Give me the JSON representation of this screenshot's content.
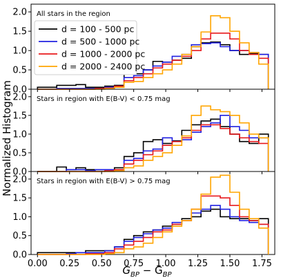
{
  "figure": {
    "ylabel": "Normalized Histogram",
    "xlabel_main": "G",
    "xlabel_sub1": "BP",
    "xlabel_mid": " − G",
    "xlabel_sub2": "BP"
  },
  "colors": {
    "black": "#000000",
    "blue": "#1f1fe0",
    "red": "#e8191c",
    "orange": "#ffa500"
  },
  "legend": [
    {
      "label": "d = 100 - 500 pc",
      "color": "#000000"
    },
    {
      "label": "d = 500 - 1000 pc",
      "color": "#1f1fe0"
    },
    {
      "label": "d = 1000 - 2000 pc",
      "color": "#e8191c"
    },
    {
      "label": "d = 2000 - 2400 pc",
      "color": "#ffa500"
    }
  ],
  "chart_data": [
    {
      "type": "step-histogram",
      "title": "All stars in the region",
      "xlim": [
        -0.05,
        1.85
      ],
      "ylim": [
        0,
        2.2
      ],
      "xticks": [
        "0.00",
        "0.25",
        "0.50",
        "0.75",
        "1.00",
        "1.25",
        "1.50",
        "1.75"
      ],
      "yticks": [
        "0.0",
        "0.5",
        "1.0",
        "1.5",
        "2.0"
      ],
      "bin_edges": [
        0.0,
        0.075,
        0.15,
        0.225,
        0.3,
        0.375,
        0.45,
        0.525,
        0.6,
        0.675,
        0.75,
        0.825,
        0.9,
        0.975,
        1.05,
        1.125,
        1.2,
        1.275,
        1.35,
        1.425,
        1.5,
        1.575,
        1.65,
        1.725,
        1.8
      ],
      "series": [
        {
          "name": "d = 100 - 500 pc",
          "color": "#000000",
          "values": [
            0.05,
            0.05,
            0.1,
            0.1,
            0.12,
            0.05,
            0.05,
            0.08,
            0.1,
            0.4,
            0.4,
            0.5,
            0.72,
            0.7,
            0.75,
            0.8,
            1.1,
            1.2,
            1.22,
            1.15,
            1.0,
            0.9,
            0.92,
            0.9
          ]
        },
        {
          "name": "d = 500 - 1000 pc",
          "color": "#1f1fe0",
          "values": [
            0.0,
            0.0,
            0.02,
            0.02,
            0.02,
            0.02,
            0.02,
            0.05,
            0.05,
            0.3,
            0.35,
            0.5,
            0.6,
            0.7,
            0.85,
            0.9,
            1.15,
            1.18,
            1.2,
            1.1,
            1.0,
            1.0,
            0.95,
            0.9
          ]
        },
        {
          "name": "d = 1000 - 2000 pc",
          "color": "#e8191c",
          "values": [
            0.0,
            0.0,
            0.0,
            0.0,
            0.0,
            0.0,
            0.02,
            0.03,
            0.08,
            0.22,
            0.3,
            0.4,
            0.55,
            0.65,
            0.75,
            0.85,
            1.0,
            1.3,
            1.45,
            1.45,
            1.3,
            1.0,
            0.9,
            0.8
          ]
        },
        {
          "name": "d = 2000 - 2400 pc",
          "color": "#ffa500",
          "values": [
            0.0,
            0.0,
            0.0,
            0.0,
            0.0,
            0.0,
            0.0,
            0.02,
            0.05,
            0.18,
            0.2,
            0.3,
            0.4,
            0.5,
            0.65,
            0.9,
            1.1,
            1.48,
            1.9,
            1.85,
            1.5,
            1.2,
            0.95,
            0.65
          ]
        }
      ]
    },
    {
      "type": "step-histogram",
      "title": "Stars in region with E(B-V) < 0.75 mag",
      "xlim": [
        -0.05,
        1.85
      ],
      "ylim": [
        0,
        2.2
      ],
      "xticks": [
        "0.00",
        "0.25",
        "0.50",
        "0.75",
        "1.00",
        "1.25",
        "1.50",
        "1.75"
      ],
      "yticks": [
        "0.0",
        "0.5",
        "1.0",
        "1.5",
        "2.0"
      ],
      "bin_edges": [
        0.0,
        0.075,
        0.15,
        0.225,
        0.3,
        0.375,
        0.45,
        0.525,
        0.6,
        0.675,
        0.75,
        0.825,
        0.9,
        0.975,
        1.05,
        1.125,
        1.2,
        1.275,
        1.35,
        1.425,
        1.5,
        1.575,
        1.65,
        1.725,
        1.8
      ],
      "series": [
        {
          "name": "d = 100 - 500 pc",
          "color": "#000000",
          "values": [
            0.0,
            0.0,
            0.12,
            0.05,
            0.1,
            0.05,
            0.05,
            0.05,
            0.1,
            0.4,
            0.5,
            0.8,
            0.85,
            0.75,
            0.82,
            1.1,
            1.25,
            1.35,
            1.4,
            1.2,
            1.0,
            0.8,
            0.75,
            1.0
          ]
        },
        {
          "name": "d = 500 - 1000 pc",
          "color": "#1f1fe0",
          "values": [
            0.0,
            0.0,
            0.0,
            0.05,
            0.05,
            0.02,
            0.05,
            0.05,
            0.05,
            0.3,
            0.35,
            0.55,
            0.6,
            0.9,
            0.8,
            0.85,
            1.05,
            1.2,
            1.3,
            1.5,
            1.2,
            1.1,
            0.9,
            0.9
          ]
        },
        {
          "name": "d = 1000 - 2000 pc",
          "color": "#e8191c",
          "values": [
            0.0,
            0.0,
            0.0,
            0.0,
            0.0,
            0.0,
            0.0,
            0.02,
            0.05,
            0.2,
            0.3,
            0.45,
            0.55,
            0.7,
            0.8,
            0.9,
            1.1,
            1.25,
            1.25,
            1.15,
            1.0,
            0.9,
            0.8,
            0.75
          ]
        },
        {
          "name": "d = 2000 - 2400 pc",
          "color": "#ffa500",
          "values": [
            0.0,
            0.0,
            0.0,
            0.0,
            0.0,
            0.0,
            0.0,
            0.0,
            0.02,
            0.1,
            0.15,
            0.3,
            0.4,
            0.5,
            0.7,
            0.95,
            1.5,
            1.75,
            1.65,
            1.6,
            1.5,
            1.3,
            1.0,
            0.9
          ]
        }
      ]
    },
    {
      "type": "step-histogram",
      "title": "Stars in region with E(B-V) > 0.75 mag",
      "xlim": [
        -0.05,
        1.85
      ],
      "ylim": [
        0,
        2.2
      ],
      "xticks": [
        "0.00",
        "0.25",
        "0.50",
        "0.75",
        "1.00",
        "1.25",
        "1.50",
        "1.75"
      ],
      "yticks": [
        "0.0",
        "0.5",
        "1.0",
        "1.5",
        "2.0"
      ],
      "bin_edges": [
        0.0,
        0.075,
        0.15,
        0.225,
        0.3,
        0.375,
        0.45,
        0.525,
        0.6,
        0.675,
        0.75,
        0.825,
        0.9,
        0.975,
        1.05,
        1.125,
        1.2,
        1.275,
        1.35,
        1.425,
        1.5,
        1.575,
        1.65,
        1.725,
        1.8
      ],
      "series": [
        {
          "name": "d = 100 - 500 pc",
          "color": "#000000",
          "values": [
            0.05,
            0.05,
            0.05,
            0.05,
            0.05,
            0.1,
            0.1,
            0.1,
            0.2,
            0.4,
            0.5,
            0.6,
            0.65,
            0.75,
            0.8,
            0.95,
            1.0,
            1.15,
            1.2,
            1.0,
            0.95,
            0.95,
            0.9,
            0.95
          ]
        },
        {
          "name": "d = 500 - 1000 pc",
          "color": "#1f1fe0",
          "values": [
            0.0,
            0.0,
            0.0,
            0.02,
            0.05,
            0.05,
            0.05,
            0.1,
            0.2,
            0.35,
            0.45,
            0.55,
            0.65,
            0.7,
            0.85,
            0.9,
            1.1,
            1.2,
            1.3,
            1.2,
            1.0,
            0.9,
            0.85,
            0.8
          ]
        },
        {
          "name": "d = 1000 - 2000 pc",
          "color": "#e8191c",
          "values": [
            0.0,
            0.0,
            0.0,
            0.0,
            0.0,
            0.02,
            0.02,
            0.05,
            0.15,
            0.25,
            0.35,
            0.45,
            0.6,
            0.65,
            0.8,
            0.9,
            1.2,
            1.55,
            1.55,
            1.5,
            1.3,
            1.0,
            0.9,
            0.8
          ]
        },
        {
          "name": "d = 2000 - 2400 pc",
          "color": "#ffa500",
          "values": [
            0.0,
            0.0,
            0.0,
            0.0,
            0.0,
            0.0,
            0.0,
            0.02,
            0.05,
            0.15,
            0.2,
            0.3,
            0.45,
            0.6,
            0.75,
            0.9,
            1.2,
            1.6,
            2.05,
            2.1,
            1.65,
            1.2,
            0.95,
            0.7
          ]
        }
      ]
    }
  ]
}
